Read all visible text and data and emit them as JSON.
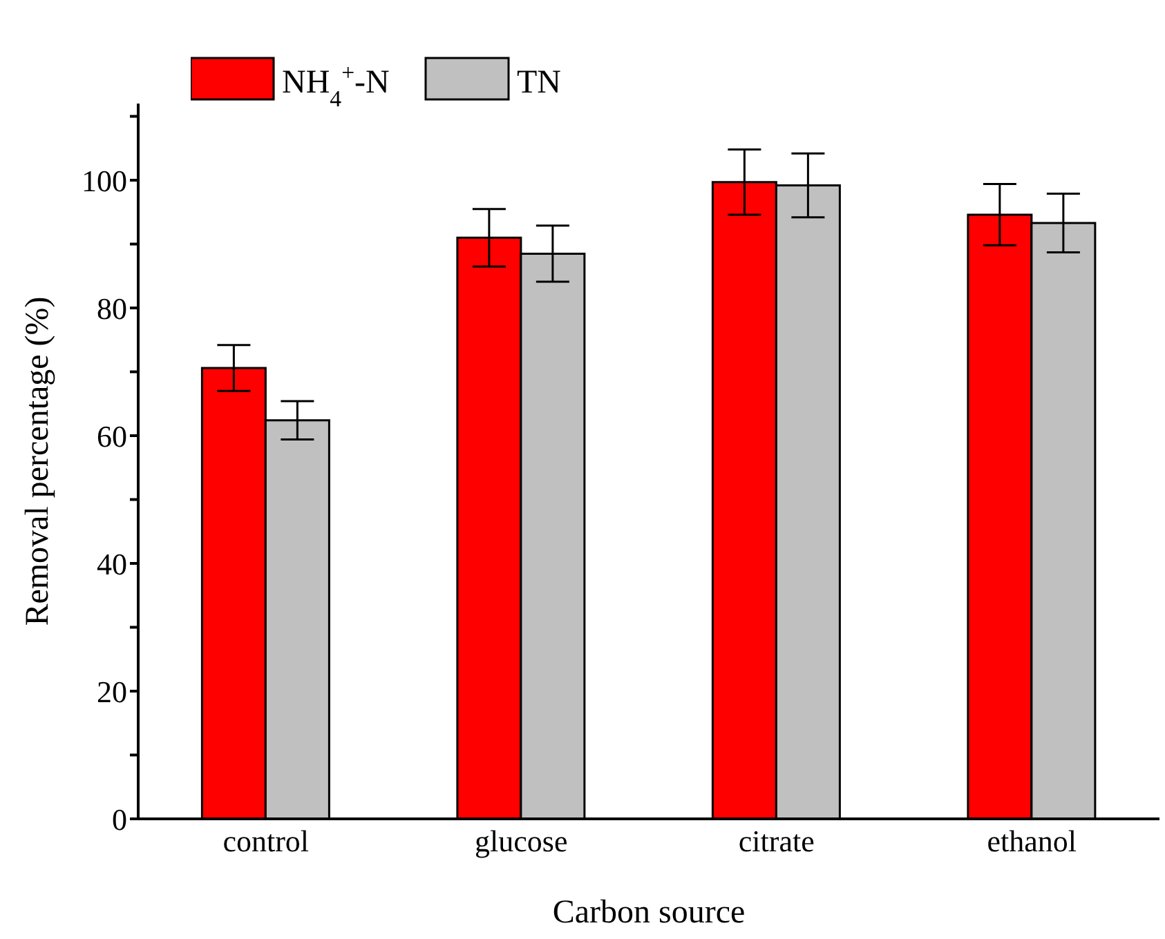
{
  "chart_data": {
    "type": "bar",
    "xlabel": "Carbon source",
    "ylabel": "Removal percentage (%)",
    "categories": [
      "control",
      "glucose",
      "citrate",
      "ethanol"
    ],
    "series": [
      {
        "name": "NH$_{4}$$^{+}$-N",
        "color": "#ff0000",
        "values": [
          70.6,
          91.0,
          99.7,
          94.6
        ],
        "errors": [
          3.6,
          4.5,
          5.1,
          4.8
        ]
      },
      {
        "name": "TN",
        "color": "#c0c0c0",
        "values": [
          62.4,
          88.5,
          99.2,
          93.3
        ],
        "errors": [
          3.0,
          4.4,
          5.0,
          4.6
        ]
      }
    ],
    "ylim": [
      0,
      112
    ],
    "yticks": [
      0,
      {
        "value": 10,
        "label": null
      },
      20,
      {
        "value": 30,
        "label": null
      },
      40,
      {
        "value": 50,
        "label": null
      },
      60,
      {
        "value": 70,
        "label": null
      },
      80,
      {
        "value": 90,
        "label": null
      },
      100,
      {
        "value": 110,
        "label": null
      }
    ],
    "grid": false,
    "legend": "top left"
  }
}
